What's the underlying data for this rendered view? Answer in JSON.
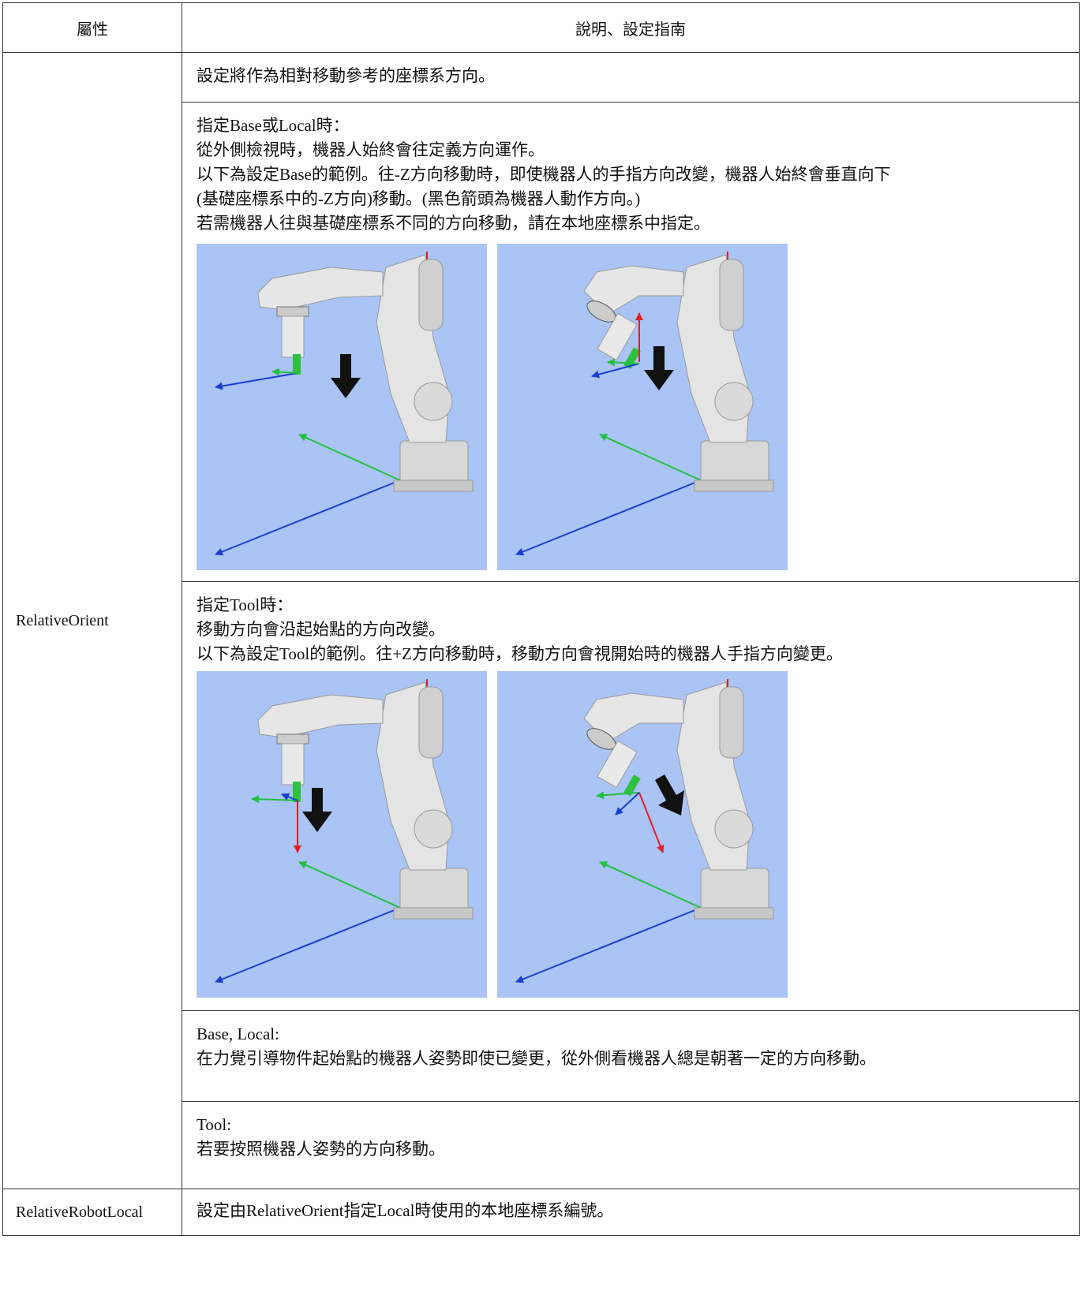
{
  "table": {
    "headers": [
      "屬性",
      "說明、設定指南"
    ],
    "rows": [
      {
        "property": "RelativeOrient",
        "cells": [
          [
            "設定將作為相對移動參考的座標系方向。"
          ],
          [
            "指定Base或Local時：",
            "從外側檢視時，機器人始終會往定義方向運作。",
            "以下為設定Base的範例。往-Z方向移動時，即使機器人的手指方向改變，機器人始終會垂直向下",
            "(基礎座標系中的-Z方向)移動。(黑色箭頭為機器人動作方向。)",
            "若需機器人往與基礎座標系不同的方向移動，請在本地座標系中指定。"
          ],
          [
            "指定Tool時：",
            "移動方向會沿起始點的方向改變。",
            "以下為設定Tool的範例。往+Z方向移動時，移動方向會視開始時的機器人手指方向變更。"
          ],
          [
            "Base, Local:",
            "在力覺引導物件起始點的機器人姿勢即使已變更，從外側看機器人總是朝著一定的方向移動。"
          ],
          [
            "Tool:",
            "若要按照機器人姿勢的方向移動。"
          ]
        ]
      },
      {
        "property": "RelativeRobotLocal",
        "cells": [
          [
            "設定由RelativeOrient指定Local時使用的本地座標系編號。"
          ]
        ]
      }
    ]
  }
}
